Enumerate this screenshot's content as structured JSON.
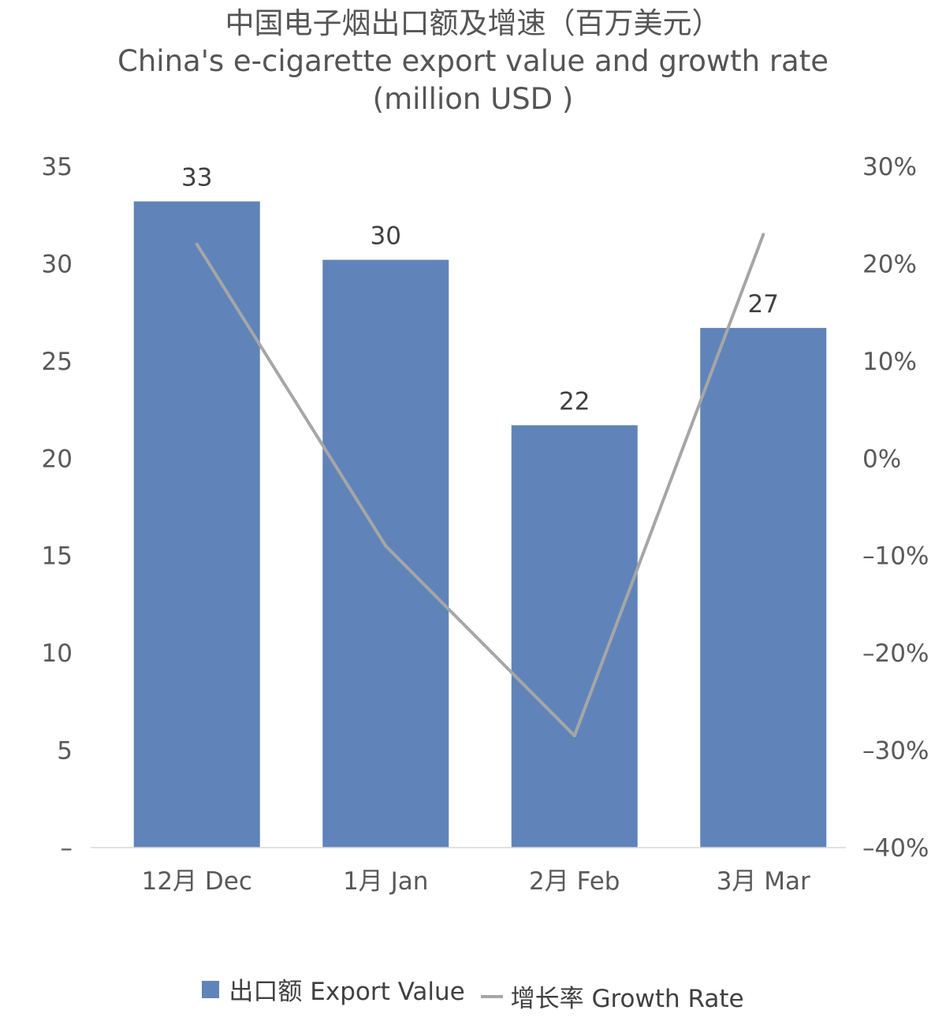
{
  "chart_data": {
    "type": "bar",
    "title": "中国电子烟出口额及增速（百万美元）",
    "subtitle": "China's e-cigarette export value and growth rate",
    "subtitle2": "(million USD )",
    "categories": [
      "12月 Dec",
      "1月 Jan",
      "2月 Feb",
      "3月 Mar"
    ],
    "series": [
      {
        "name": "出口额 Export Value",
        "type": "bar",
        "axis": "left",
        "color": "#6084b9",
        "values": [
          33.2,
          30.2,
          21.7,
          26.7
        ],
        "labels": [
          "33",
          "30",
          "22",
          "27"
        ]
      },
      {
        "name": "增长率 Growth Rate",
        "type": "line",
        "axis": "right",
        "color": "#a6a6a6",
        "values": [
          22,
          -9,
          -28.5,
          23
        ]
      }
    ],
    "y_left": {
      "min": 0,
      "max": 35,
      "ticks": [
        0,
        5,
        10,
        15,
        20,
        25,
        30,
        35
      ],
      "tick_labels": [
        "–",
        "5",
        "10",
        "15",
        "20",
        "25",
        "30",
        "35"
      ]
    },
    "y_right": {
      "min": -40,
      "max": 30,
      "ticks": [
        -40,
        -30,
        -20,
        -10,
        0,
        10,
        20,
        30
      ],
      "tick_labels": [
        "–40%",
        "–30%",
        "–20%",
        "–10%",
        "0%",
        "10%",
        "20%",
        "30%"
      ]
    },
    "grid": false,
    "legend_position": "bottom"
  }
}
